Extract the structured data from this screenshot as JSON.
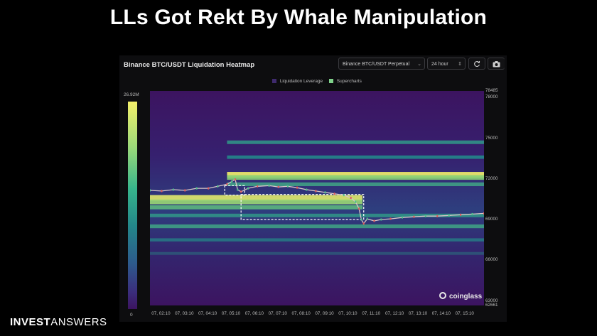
{
  "slide": {
    "title": "LLs Got Rekt By Whale Manipulation",
    "brand_bold": "INVEST",
    "brand_regular": "ANSWERS"
  },
  "panel": {
    "title": "Binance BTC/USDT Liquidation Heatmap",
    "pair_select": "Binance BTC/USDT Perpetual",
    "range_select": "24 hour",
    "refresh_icon": "refresh-icon",
    "camera_icon": "camera-icon",
    "watermark": "coinglass",
    "colors": {
      "low": "#3c1460",
      "mid": "#23868a",
      "high": "#f3ef6a",
      "legend_leverage": "#3f2a6e",
      "legend_supercharts": "#7fd18a",
      "annotation_box": "#ffffff"
    }
  },
  "chart_data": {
    "type": "heatmap",
    "title": "",
    "legend": [
      {
        "name": "Liquidation Leverage"
      },
      {
        "name": "Supercharts"
      }
    ],
    "legend_placement": "top-center",
    "colorbar": {
      "max_label": "26.92M",
      "min_label": "0"
    },
    "y_range": [
      62661,
      78485
    ],
    "y_ticks": [
      "78485",
      "78000",
      "75000",
      "72000",
      "69000",
      "66000",
      "63000",
      "62661"
    ],
    "x_ticks": [
      "07, 02:10",
      "07, 03:10",
      "07, 04:10",
      "07, 05:10",
      "07, 06:10",
      "07, 07:10",
      "07, 08:10",
      "07, 09:10",
      "07, 10:10",
      "07, 11:10",
      "07, 12:10",
      "07, 13:10",
      "07, 14:10",
      "07, 15:10"
    ],
    "x_start_hour": 1.7,
    "x_end_hour": 16.0,
    "liquidation_bands": [
      {
        "price": 72300,
        "intensity": 1.0,
        "start_hour": 5.0,
        "end_hour": 16.0
      },
      {
        "price": 72100,
        "intensity": 0.7,
        "start_hour": 5.0,
        "end_hour": 16.0
      },
      {
        "price": 71600,
        "intensity": 0.45,
        "start_hour": 5.0,
        "end_hour": 16.0
      },
      {
        "price": 70600,
        "intensity": 0.95,
        "start_hour": 1.7,
        "end_hour": 10.8
      },
      {
        "price": 70300,
        "intensity": 0.75,
        "start_hour": 1.7,
        "end_hour": 10.8
      },
      {
        "price": 69900,
        "intensity": 0.55,
        "start_hour": 1.7,
        "end_hour": 10.8
      },
      {
        "price": 69300,
        "intensity": 0.4,
        "start_hour": 1.7,
        "end_hour": 16.0
      },
      {
        "price": 68500,
        "intensity": 0.45,
        "start_hour": 1.7,
        "end_hour": 16.0
      },
      {
        "price": 74700,
        "intensity": 0.4,
        "start_hour": 5.0,
        "end_hour": 16.0
      },
      {
        "price": 73600,
        "intensity": 0.35,
        "start_hour": 5.0,
        "end_hour": 16.0
      },
      {
        "price": 67500,
        "intensity": 0.3,
        "start_hour": 1.7,
        "end_hour": 16.0
      },
      {
        "price": 66500,
        "intensity": 0.2,
        "start_hour": 1.7,
        "end_hour": 16.0
      }
    ],
    "price_line": [
      [
        1.7,
        71150
      ],
      [
        2.2,
        71100
      ],
      [
        2.7,
        71200
      ],
      [
        3.2,
        71150
      ],
      [
        3.7,
        71300
      ],
      [
        4.2,
        71300
      ],
      [
        4.6,
        71450
      ],
      [
        5.0,
        71600
      ],
      [
        5.2,
        71800
      ],
      [
        5.35,
        71950
      ],
      [
        5.45,
        71200
      ],
      [
        5.6,
        71050
      ],
      [
        5.9,
        71300
      ],
      [
        6.3,
        71450
      ],
      [
        6.8,
        71500
      ],
      [
        7.2,
        71400
      ],
      [
        7.6,
        71450
      ],
      [
        8.0,
        71350
      ],
      [
        8.4,
        71200
      ],
      [
        8.8,
        71100
      ],
      [
        9.2,
        71000
      ],
      [
        9.6,
        70900
      ],
      [
        10.0,
        70800
      ],
      [
        10.3,
        70600
      ],
      [
        10.5,
        70300
      ],
      [
        10.65,
        69800
      ],
      [
        10.75,
        69000
      ],
      [
        10.85,
        68700
      ],
      [
        11.0,
        69050
      ],
      [
        11.3,
        68900
      ],
      [
        11.6,
        69000
      ],
      [
        12.0,
        69050
      ],
      [
        12.5,
        69150
      ],
      [
        13.0,
        69200
      ],
      [
        13.5,
        69250
      ],
      [
        14.0,
        69250
      ],
      [
        14.5,
        69300
      ],
      [
        15.0,
        69350
      ],
      [
        15.5,
        69400
      ],
      [
        16.0,
        69450
      ]
    ],
    "annotation_boxes": [
      {
        "x0": 4.9,
        "x1": 5.75,
        "y0": 70800,
        "y1": 71500
      },
      {
        "x0": 5.6,
        "x1": 10.85,
        "y0": 69000,
        "y1": 70850
      }
    ]
  }
}
